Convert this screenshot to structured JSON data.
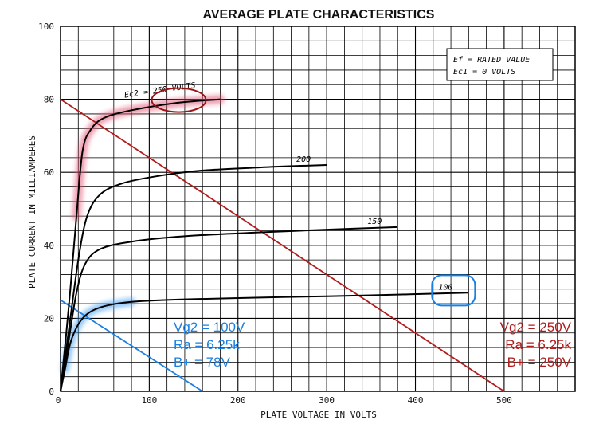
{
  "chart_data": {
    "type": "line",
    "title": "AVERAGE PLATE CHARACTERISTICS",
    "xlabel": "PLATE VOLTAGE IN VOLTS",
    "ylabel": "PLATE CURRENT IN MILLIAMPERES",
    "xlim": [
      0,
      580
    ],
    "ylim": [
      0,
      100
    ],
    "x_ticks": [
      0,
      100,
      200,
      300,
      400,
      500
    ],
    "y_ticks": [
      0,
      20,
      40,
      60,
      80,
      100
    ],
    "grid": true,
    "conditions": {
      "line1": "Ef = RATED VALUE",
      "line2": "Ec1 = 0 VOLTS"
    },
    "series": [
      {
        "name": "Ec2 = 250 VOLTS",
        "color": "#000000",
        "points": [
          [
            0,
            0
          ],
          [
            10,
            25
          ],
          [
            18,
            48
          ],
          [
            25,
            66
          ],
          [
            35,
            72
          ],
          [
            50,
            75
          ],
          [
            80,
            77
          ],
          [
            130,
            79
          ],
          [
            180,
            80
          ]
        ]
      },
      {
        "name": "200",
        "color": "#000000",
        "points": [
          [
            0,
            0
          ],
          [
            10,
            18
          ],
          [
            20,
            36
          ],
          [
            30,
            48
          ],
          [
            45,
            54
          ],
          [
            70,
            57
          ],
          [
            110,
            59
          ],
          [
            160,
            60.5
          ],
          [
            240,
            61.5
          ],
          [
            300,
            62
          ]
        ]
      },
      {
        "name": "150",
        "color": "#000000",
        "points": [
          [
            0,
            0
          ],
          [
            8,
            12
          ],
          [
            18,
            27
          ],
          [
            28,
            35
          ],
          [
            45,
            39
          ],
          [
            80,
            41
          ],
          [
            140,
            42.5
          ],
          [
            220,
            43.5
          ],
          [
            300,
            44.3
          ],
          [
            380,
            45
          ]
        ]
      },
      {
        "name": "100",
        "color": "#000000",
        "points": [
          [
            0,
            0
          ],
          [
            5,
            6
          ],
          [
            12,
            14
          ],
          [
            25,
            20
          ],
          [
            45,
            23
          ],
          [
            80,
            24.5
          ],
          [
            140,
            25.2
          ],
          [
            250,
            25.8
          ],
          [
            350,
            26.3
          ],
          [
            460,
            27
          ]
        ]
      }
    ],
    "load_lines": [
      {
        "color": "#b01c1c",
        "from": [
          0,
          80
        ],
        "to": [
          500,
          0
        ],
        "label_lines": [
          "Vg2 = 250V",
          "Ra = 6.25k",
          "B+ = 250V"
        ]
      },
      {
        "color": "#1a7fe0",
        "from": [
          0,
          25
        ],
        "to": [
          160,
          0
        ],
        "label_lines": [
          "Vg2 = 100V",
          "Ra = 6.25k",
          "B+ = 78V"
        ]
      }
    ],
    "annotations": {
      "red_highlight_curve": "Ec2 = 250 VOLTS",
      "blue_highlight_curve": "100"
    }
  }
}
